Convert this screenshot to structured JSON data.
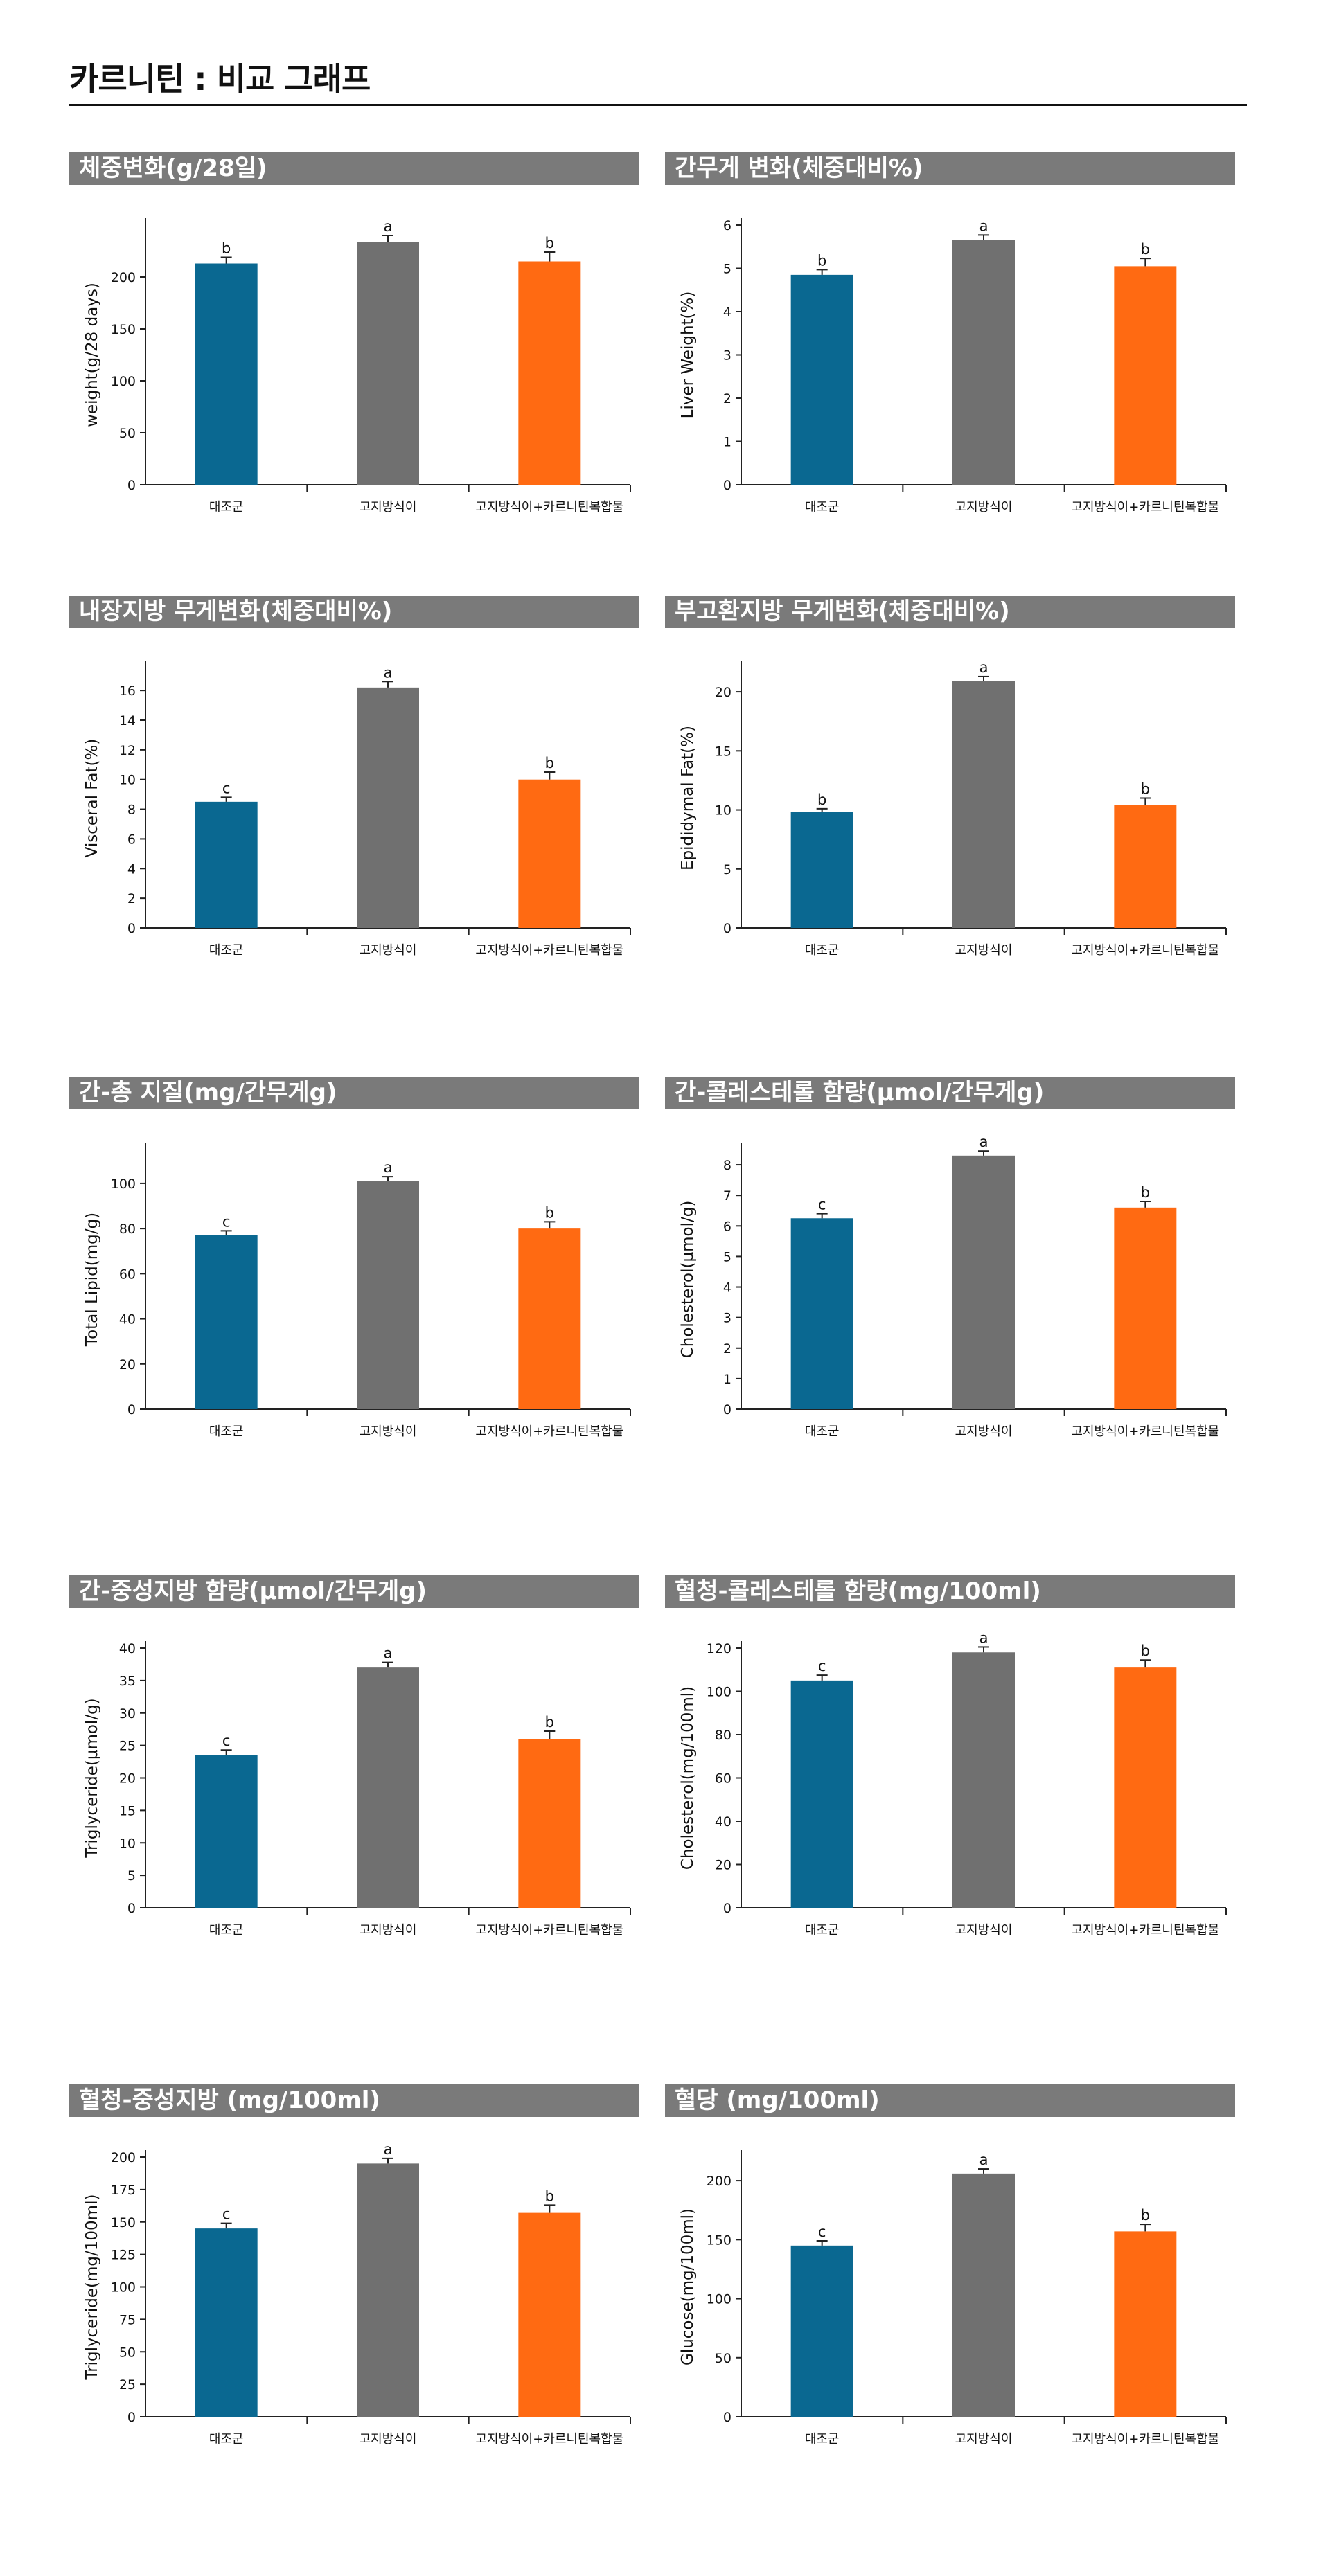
{
  "page": {
    "title": "카르니틴 : 비교 그래프"
  },
  "colors": {
    "control": "#0a6891",
    "high_fat": "#707070",
    "treatment": "#ff6a12",
    "header_bg": "#7a7a7a"
  },
  "categories": [
    "대조군",
    "고지방식이",
    "고지방식이+카르니틴복합물"
  ],
  "chart_data": [
    {
      "type": "bar",
      "title": "체중변화(g/28일)",
      "ylabel": "weight(g/28 days)",
      "categories": [
        "대조군",
        "고지방식이",
        "고지방식이+카르니틴복합물"
      ],
      "values": [
        213,
        234,
        215
      ],
      "errors": [
        6,
        6,
        9
      ],
      "labels": [
        "b",
        "a",
        "b"
      ],
      "ylim": [
        0,
        250
      ],
      "ticks": [
        0,
        50,
        100,
        150,
        200
      ]
    },
    {
      "type": "bar",
      "title": "간무게 변화(체중대비%)",
      "ylabel": "Liver Weight(%)",
      "categories": [
        "대조군",
        "고지방식이",
        "고지방식이+카르니틴복합물"
      ],
      "values": [
        4.85,
        5.65,
        5.05
      ],
      "errors": [
        0.12,
        0.12,
        0.18
      ],
      "labels": [
        "b",
        "a",
        "b"
      ],
      "ylim": [
        0,
        6
      ],
      "ticks": [
        0,
        1,
        2,
        3,
        4,
        5,
        6
      ]
    },
    {
      "type": "bar",
      "title": "내장지방 무게변화(체중대비%)",
      "ylabel": "Visceral Fat(%)",
      "categories": [
        "대조군",
        "고지방식이",
        "고지방식이+카르니틴복합물"
      ],
      "values": [
        8.5,
        16.2,
        10.0
      ],
      "errors": [
        0.3,
        0.4,
        0.5
      ],
      "labels": [
        "c",
        "a",
        "b"
      ],
      "ylim": [
        0,
        17.5
      ],
      "ticks": [
        0,
        2,
        4,
        6,
        8,
        10,
        12,
        14,
        16
      ]
    },
    {
      "type": "bar",
      "title": "부고환지방 무게변화(체중대비%)",
      "ylabel": "Epididymal Fat(%)",
      "categories": [
        "대조군",
        "고지방식이",
        "고지방식이+카르니틴복합물"
      ],
      "values": [
        9.8,
        20.9,
        10.4
      ],
      "errors": [
        0.3,
        0.4,
        0.6
      ],
      "labels": [
        "b",
        "a",
        "b"
      ],
      "ylim": [
        0,
        22
      ],
      "ticks": [
        0,
        5,
        10,
        15,
        20
      ]
    },
    {
      "type": "bar",
      "title": "간-총 지질(mg/간무게g)",
      "ylabel": "Total Lipid(mg/g)",
      "categories": [
        "대조군",
        "고지방식이",
        "고지방식이+카르니틴복합물"
      ],
      "values": [
        77,
        101,
        80
      ],
      "errors": [
        2,
        2,
        3
      ],
      "labels": [
        "c",
        "a",
        "b"
      ],
      "ylim": [
        0,
        115
      ],
      "ticks": [
        0,
        20,
        40,
        60,
        80,
        100
      ]
    },
    {
      "type": "bar",
      "title": "간-콜레스테롤 함량(μmol/간무게g)",
      "ylabel": "Cholesterol(μmol/g)",
      "categories": [
        "대조군",
        "고지방식이",
        "고지방식이+카르니틴복합물"
      ],
      "values": [
        6.25,
        8.3,
        6.6
      ],
      "errors": [
        0.15,
        0.15,
        0.2
      ],
      "labels": [
        "c",
        "a",
        "b"
      ],
      "ylim": [
        0,
        8.5
      ],
      "ticks": [
        0,
        1,
        2,
        3,
        4,
        5,
        6,
        7,
        8
      ]
    },
    {
      "type": "bar",
      "title": "간-중성지방 함량(μmol/간무게g)",
      "ylabel": "Triglyceride(μmol/g)",
      "categories": [
        "대조군",
        "고지방식이",
        "고지방식이+카르니틴복합물"
      ],
      "values": [
        23.5,
        37.0,
        26.0
      ],
      "errors": [
        0.8,
        0.8,
        1.2
      ],
      "labels": [
        "c",
        "a",
        "b"
      ],
      "ylim": [
        0,
        40
      ],
      "ticks": [
        0,
        5,
        10,
        15,
        20,
        25,
        30,
        35,
        40
      ]
    },
    {
      "type": "bar",
      "title": "혈청-콜레스테롤 함량(mg/100ml)",
      "ylabel": "Cholesterol(mg/100ml)",
      "categories": [
        "대조군",
        "고지방식이",
        "고지방식이+카르니틴복합물"
      ],
      "values": [
        105,
        118,
        111
      ],
      "errors": [
        2.5,
        2.5,
        3.5
      ],
      "labels": [
        "c",
        "a",
        "b"
      ],
      "ylim": [
        0,
        120
      ],
      "ticks": [
        0,
        20,
        40,
        60,
        80,
        100,
        120
      ]
    },
    {
      "type": "bar",
      "title": "혈청-중성지방 (mg/100ml)",
      "ylabel": "Triglyceride(mg/100ml)",
      "categories": [
        "대조군",
        "고지방식이",
        "고지방식이+카르니틴복합물"
      ],
      "values": [
        145,
        195,
        157
      ],
      "errors": [
        4,
        4,
        6
      ],
      "labels": [
        "c",
        "a",
        "b"
      ],
      "ylim": [
        0,
        200
      ],
      "ticks": [
        0,
        25,
        50,
        75,
        100,
        125,
        150,
        175,
        200
      ]
    },
    {
      "type": "bar",
      "title": "혈당 (mg/100ml)",
      "ylabel": "Glucose(mg/100ml)",
      "categories": [
        "대조군",
        "고지방식이",
        "고지방식이+카르니틴복합물"
      ],
      "values": [
        145,
        206,
        157
      ],
      "errors": [
        4,
        4,
        6
      ],
      "labels": [
        "c",
        "a",
        "b"
      ],
      "ylim": [
        0,
        220
      ],
      "ticks": [
        0,
        50,
        100,
        150,
        200
      ]
    }
  ]
}
